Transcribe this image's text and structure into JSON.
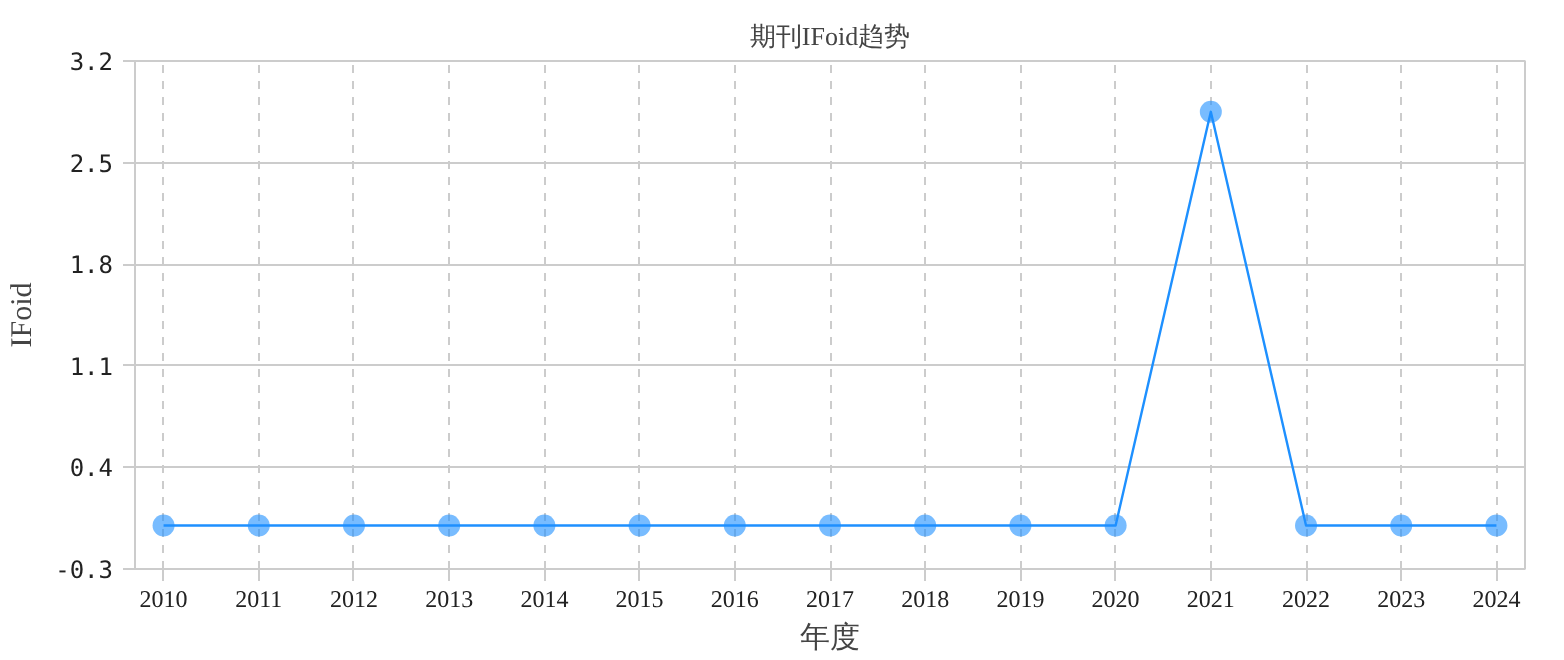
{
  "chart_data": {
    "type": "line",
    "title": "期刊IFoid趋势",
    "xlabel": "年度",
    "ylabel": "IFoid",
    "categories": [
      "2010",
      "2011",
      "2012",
      "2013",
      "2014",
      "2015",
      "2016",
      "2017",
      "2018",
      "2019",
      "2020",
      "2021",
      "2022",
      "2023",
      "2024"
    ],
    "series": [
      {
        "color": "#1e90ff",
        "values": [
          0,
          0,
          0,
          0,
          0,
          0,
          0,
          0,
          0,
          0,
          0,
          2.85,
          0,
          0,
          0
        ]
      }
    ],
    "ylim": [
      -0.3,
      3.2
    ],
    "yticks": [
      -0.3,
      0.4,
      1.1,
      1.8,
      2.5,
      3.2
    ],
    "grid": true,
    "marker": "circle",
    "line_style": "solid"
  }
}
